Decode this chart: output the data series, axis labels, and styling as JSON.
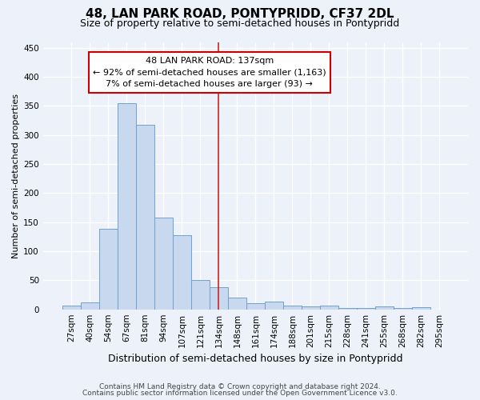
{
  "title": "48, LAN PARK ROAD, PONTYPRIDD, CF37 2DL",
  "subtitle": "Size of property relative to semi-detached houses in Pontypridd",
  "xlabel": "Distribution of semi-detached houses by size in Pontypridd",
  "ylabel": "Number of semi-detached properties",
  "footer1": "Contains HM Land Registry data © Crown copyright and database right 2024.",
  "footer2": "Contains public sector information licensed under the Open Government Licence v3.0.",
  "bar_labels": [
    "27sqm",
    "40sqm",
    "54sqm",
    "67sqm",
    "81sqm",
    "94sqm",
    "107sqm",
    "121sqm",
    "134sqm",
    "148sqm",
    "161sqm",
    "174sqm",
    "188sqm",
    "201sqm",
    "215sqm",
    "228sqm",
    "241sqm",
    "255sqm",
    "268sqm",
    "282sqm",
    "295sqm"
  ],
  "bar_values": [
    7,
    12,
    138,
    355,
    317,
    158,
    127,
    50,
    38,
    20,
    10,
    14,
    7,
    5,
    7,
    2,
    2,
    5,
    2,
    4,
    0
  ],
  "bar_color": "#c8d8ef",
  "bar_edge_color": "#6fa0cc",
  "vline_index": 8,
  "vline_color": "#cc2222",
  "annotation_line1": "48 LAN PARK ROAD: 137sqm",
  "annotation_line2": "← 92% of semi-detached houses are smaller (1,163)",
  "annotation_line3": "7% of semi-detached houses are larger (93) →",
  "annotation_box_edgecolor": "#cc0000",
  "annotation_bg": "#ffffff",
  "ylim": [
    0,
    460
  ],
  "yticks": [
    0,
    50,
    100,
    150,
    200,
    250,
    300,
    350,
    400,
    450
  ],
  "bg_color": "#edf1fa",
  "grid_color": "#ffffff",
  "title_fontsize": 11,
  "subtitle_fontsize": 9,
  "ylabel_fontsize": 8,
  "xlabel_fontsize": 9,
  "tick_fontsize": 7.5,
  "footer_fontsize": 6.5,
  "ann_fontsize": 8
}
